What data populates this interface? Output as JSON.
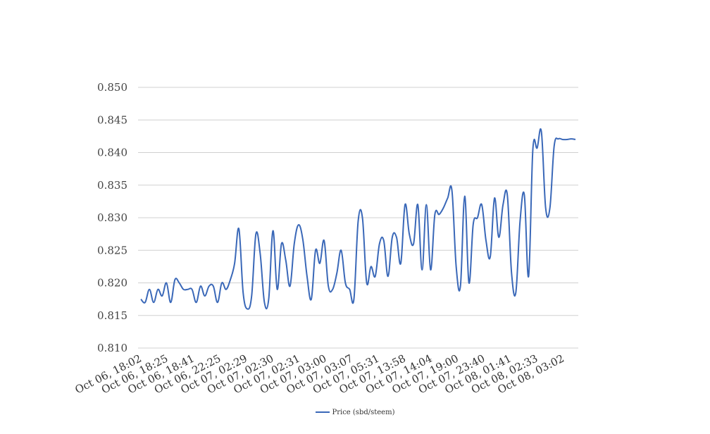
{
  "chart_data": {
    "type": "line",
    "title": "",
    "xlabel": "",
    "ylabel": "",
    "ylim": [
      0.81,
      0.85
    ],
    "yticks": [
      "0.810",
      "0.815",
      "0.820",
      "0.825",
      "0.830",
      "0.835",
      "0.840",
      "0.845",
      "0.850"
    ],
    "x_tick_labels": [
      "Oct 06, 18:02",
      "Oct 06, 18:25",
      "Oct 06, 18:41",
      "Oct 06, 22:25",
      "Oct 07, 02:29",
      "Oct 07, 02:30",
      "Oct 07, 02:31",
      "Oct 07, 03:00",
      "Oct 07, 03:07",
      "Oct 07, 05:31",
      "Oct 07, 13:58",
      "Oct 07, 14:04",
      "Oct 07, 19:00",
      "Oct 07, 23:40",
      "Oct 08, 01:41",
      "Oct 08, 02:33",
      "Oct 08, 03:02"
    ],
    "grid": true,
    "legend_position": "bottom",
    "series": [
      {
        "name": "Price (sbd/steem)",
        "color": "#3a68b8",
        "values": [
          0.8175,
          0.817,
          0.819,
          0.817,
          0.819,
          0.818,
          0.82,
          0.817,
          0.8205,
          0.82,
          0.819,
          0.819,
          0.819,
          0.817,
          0.8195,
          0.818,
          0.8195,
          0.8195,
          0.817,
          0.82,
          0.819,
          0.8205,
          0.823,
          0.8283,
          0.8185,
          0.816,
          0.818,
          0.8275,
          0.8245,
          0.817,
          0.8175,
          0.828,
          0.819,
          0.826,
          0.8235,
          0.8195,
          0.826,
          0.8289,
          0.8267,
          0.821,
          0.8175,
          0.825,
          0.823,
          0.8265,
          0.8195,
          0.819,
          0.8215,
          0.825,
          0.82,
          0.819,
          0.8175,
          0.8295,
          0.83,
          0.82,
          0.8225,
          0.821,
          0.826,
          0.8265,
          0.821,
          0.827,
          0.827,
          0.823,
          0.832,
          0.8275,
          0.826,
          0.832,
          0.822,
          0.832,
          0.822,
          0.8305,
          0.8305,
          0.8315,
          0.833,
          0.8342,
          0.8225,
          0.8195,
          0.8333,
          0.82,
          0.829,
          0.83,
          0.832,
          0.8265,
          0.824,
          0.833,
          0.827,
          0.832,
          0.8335,
          0.8215,
          0.8185,
          0.8295,
          0.8335,
          0.821,
          0.8405,
          0.8407,
          0.8432,
          0.8315,
          0.8315,
          0.841,
          0.8421,
          0.842,
          0.842,
          0.8421,
          0.842
        ]
      }
    ]
  }
}
